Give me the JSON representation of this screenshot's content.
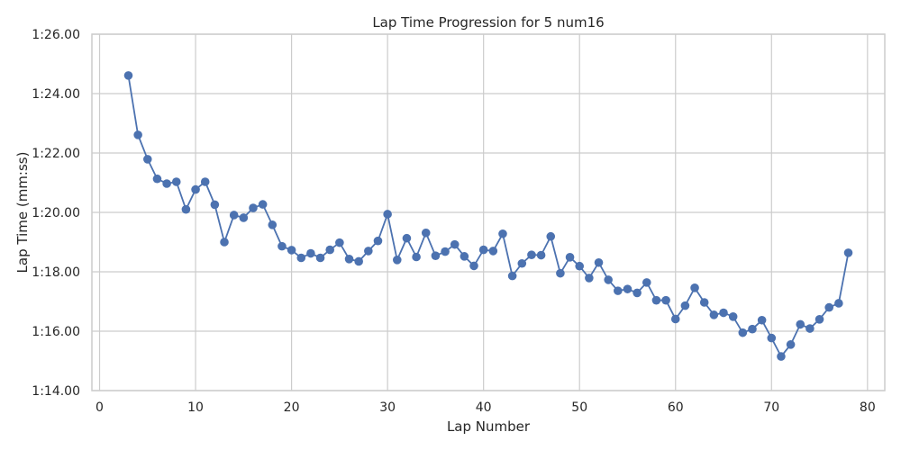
{
  "chart_data": {
    "type": "line",
    "title": "Lap Time Progression for 5 num16",
    "xlabel": "Lap Number",
    "ylabel": "Lap Time (mm:ss)",
    "xlim": [
      -0.8,
      81.8
    ],
    "ylim": [
      74,
      86
    ],
    "x_ticks": [
      0,
      10,
      20,
      30,
      40,
      50,
      60,
      70,
      80
    ],
    "y_ticks": [
      74,
      76,
      78,
      80,
      82,
      84,
      86
    ],
    "y_tick_labels": [
      "1:14.00",
      "1:16.00",
      "1:18.00",
      "1:20.00",
      "1:22.00",
      "1:24.00",
      "1:26.00"
    ],
    "grid": true,
    "color": "#4c72b0",
    "series": [
      {
        "x": [
          3,
          4,
          5,
          6,
          7,
          8,
          9,
          10,
          11,
          12,
          13,
          14,
          15,
          16,
          17,
          18,
          19,
          20,
          21,
          22,
          23,
          24,
          25,
          26,
          27,
          28,
          29,
          30,
          31,
          32,
          33,
          34,
          35,
          36,
          37,
          38,
          39,
          40,
          41,
          42,
          43,
          44,
          45,
          46,
          47,
          48,
          49,
          50,
          51,
          52,
          53,
          54,
          55,
          56,
          57,
          58,
          59,
          60,
          61,
          62,
          63,
          64,
          65,
          66,
          67,
          68,
          69,
          70,
          71,
          72,
          73,
          74,
          75,
          76,
          77,
          78
        ],
        "y": [
          84.61,
          82.61,
          81.79,
          81.13,
          80.97,
          81.03,
          80.1,
          80.77,
          81.03,
          80.26,
          79.0,
          79.91,
          79.82,
          80.15,
          80.27,
          79.58,
          78.86,
          78.73,
          78.47,
          78.62,
          78.47,
          78.74,
          78.98,
          78.43,
          78.35,
          78.7,
          79.04,
          79.94,
          78.4,
          79.13,
          78.5,
          79.31,
          78.54,
          78.68,
          78.92,
          78.52,
          78.2,
          78.74,
          78.7,
          79.28,
          77.86,
          78.28,
          78.57,
          78.56,
          79.19,
          77.95,
          78.49,
          78.19,
          77.79,
          78.31,
          77.73,
          77.36,
          77.42,
          77.29,
          77.64,
          77.04,
          77.04,
          76.41,
          76.86,
          77.46,
          76.97,
          76.55,
          76.62,
          76.49,
          75.95,
          76.07,
          76.37,
          75.77,
          75.15,
          75.55,
          76.23,
          76.09,
          76.4,
          76.8,
          76.94,
          78.64
        ]
      }
    ]
  }
}
